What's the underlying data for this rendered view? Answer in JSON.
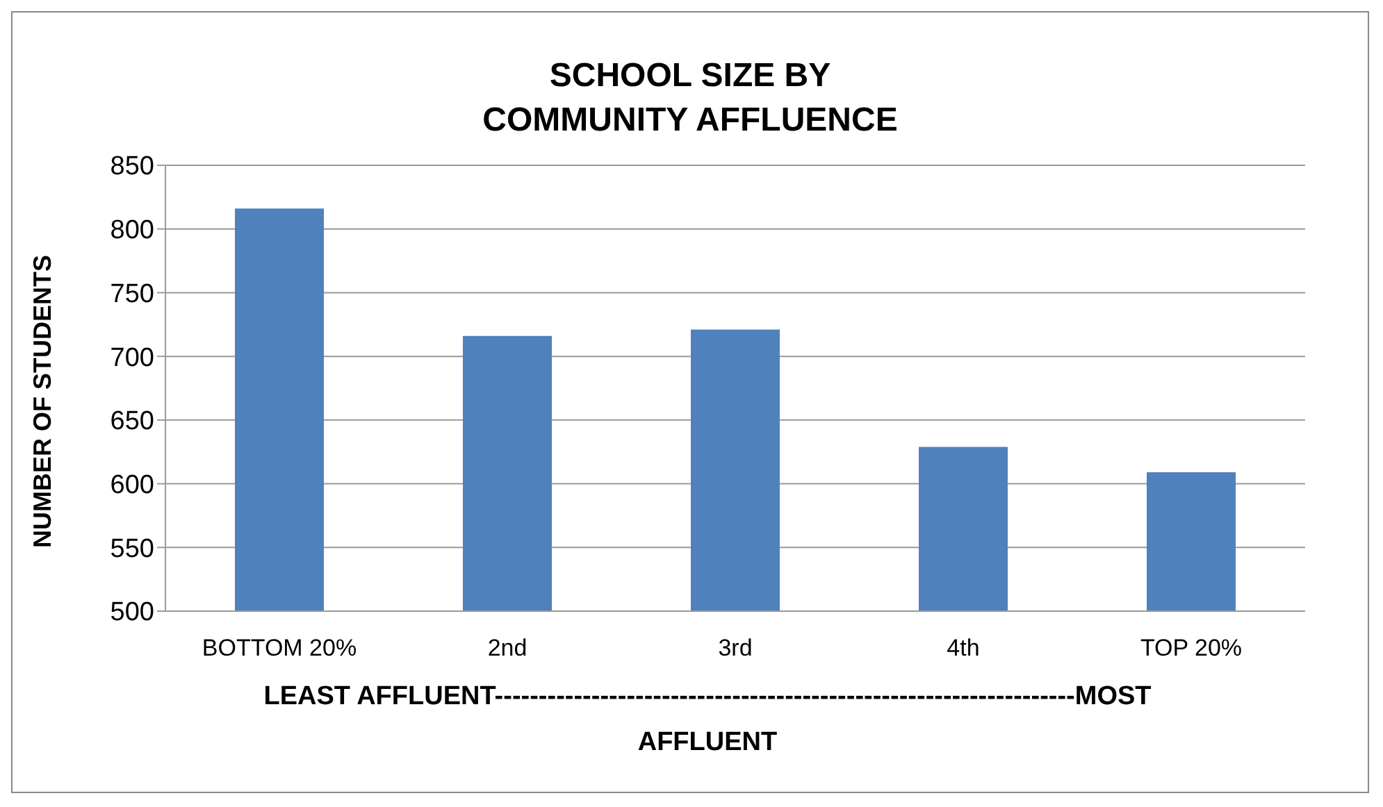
{
  "chart_data": {
    "type": "bar",
    "title": "SCHOOL SIZE BY COMMUNITY AFFLUENCE",
    "categories": [
      "BOTTOM 20%",
      "2nd",
      "3rd",
      "4th",
      "TOP 20%"
    ],
    "values": [
      816,
      716,
      721,
      629,
      609
    ],
    "color": "#4f81bd",
    "xlabel": "LEAST AFFLUENT------------------------------------------------------------------MOST AFFLUENT",
    "ylabel": "NUMBER OF STUDENTS",
    "ylim": [
      500,
      850
    ],
    "yticks": [
      500,
      550,
      600,
      650,
      700,
      750,
      800,
      850
    ],
    "grid": "y"
  }
}
